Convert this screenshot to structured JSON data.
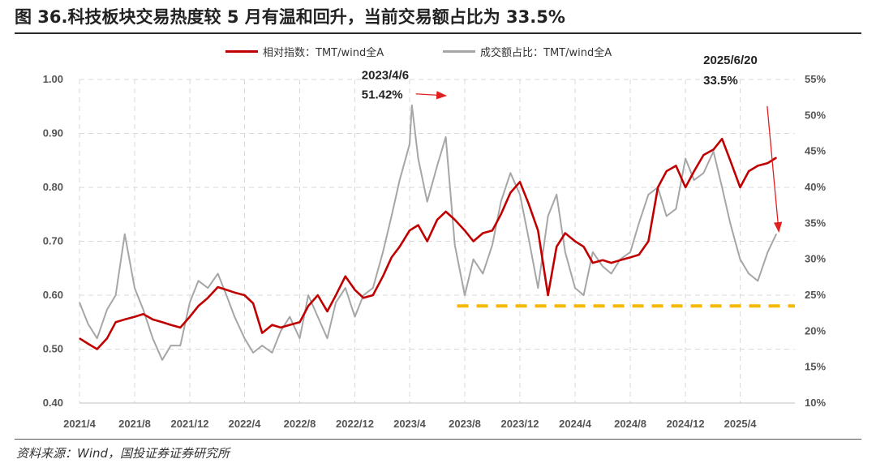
{
  "title": "图 36.科技板块交易热度较 5 月有温和回升，当前交易额占比为 33.5%",
  "source": "资料来源：Wind，国投证券证券研究所",
  "colors": {
    "series1": "#c00000",
    "series2": "#a6a6a6",
    "reference": "#f5b800",
    "arrow": "#e02020",
    "grid": "#d9d9d9"
  },
  "chart_data": {
    "type": "line",
    "x_range": [
      "2021-04-01",
      "2025-07-31"
    ],
    "x_ticks": [
      "2021/4",
      "2021/8",
      "2021/12",
      "2022/4",
      "2022/8",
      "2022/12",
      "2023/4",
      "2023/8",
      "2023/12",
      "2024/4",
      "2024/8",
      "2024/12",
      "2025/4"
    ],
    "left_axis": {
      "range": [
        0.4,
        1.0
      ],
      "ticks": [
        "0.40",
        "0.50",
        "0.60",
        "0.70",
        "0.80",
        "0.90",
        "1.00"
      ]
    },
    "right_axis": {
      "range": [
        10,
        55
      ],
      "unit": "%",
      "ticks": [
        "10%",
        "15%",
        "20%",
        "25%",
        "30%",
        "35%",
        "40%",
        "45%",
        "50%",
        "55%"
      ]
    },
    "grid": true,
    "legend_position": "top",
    "series": [
      {
        "name": "相对指数：TMT/wind全A",
        "axis": "left",
        "points": [
          [
            "2021-04-01",
            0.52
          ],
          [
            "2021-04-20",
            0.51
          ],
          [
            "2021-05-10",
            0.5
          ],
          [
            "2021-06-01",
            0.52
          ],
          [
            "2021-06-20",
            0.55
          ],
          [
            "2021-07-10",
            0.555
          ],
          [
            "2021-08-01",
            0.56
          ],
          [
            "2021-08-20",
            0.565
          ],
          [
            "2021-09-10",
            0.555
          ],
          [
            "2021-10-01",
            0.55
          ],
          [
            "2021-10-20",
            0.545
          ],
          [
            "2021-11-10",
            0.54
          ],
          [
            "2021-12-01",
            0.56
          ],
          [
            "2021-12-20",
            0.58
          ],
          [
            "2022-01-10",
            0.595
          ],
          [
            "2022-02-01",
            0.615
          ],
          [
            "2022-02-20",
            0.61
          ],
          [
            "2022-03-10",
            0.605
          ],
          [
            "2022-04-01",
            0.6
          ],
          [
            "2022-04-20",
            0.585
          ],
          [
            "2022-05-10",
            0.53
          ],
          [
            "2022-06-01",
            0.545
          ],
          [
            "2022-06-20",
            0.54
          ],
          [
            "2022-07-10",
            0.545
          ],
          [
            "2022-08-01",
            0.55
          ],
          [
            "2022-08-20",
            0.58
          ],
          [
            "2022-09-10",
            0.6
          ],
          [
            "2022-10-01",
            0.57
          ],
          [
            "2022-10-20",
            0.6
          ],
          [
            "2022-11-10",
            0.635
          ],
          [
            "2022-12-01",
            0.61
          ],
          [
            "2022-12-20",
            0.595
          ],
          [
            "2023-01-10",
            0.6
          ],
          [
            "2023-02-01",
            0.635
          ],
          [
            "2023-02-20",
            0.67
          ],
          [
            "2023-03-10",
            0.69
          ],
          [
            "2023-04-01",
            0.72
          ],
          [
            "2023-04-20",
            0.73
          ],
          [
            "2023-05-10",
            0.7
          ],
          [
            "2023-06-01",
            0.74
          ],
          [
            "2023-06-20",
            0.755
          ],
          [
            "2023-07-10",
            0.74
          ],
          [
            "2023-08-01",
            0.72
          ],
          [
            "2023-08-20",
            0.7
          ],
          [
            "2023-09-10",
            0.715
          ],
          [
            "2023-10-01",
            0.72
          ],
          [
            "2023-10-20",
            0.75
          ],
          [
            "2023-11-10",
            0.79
          ],
          [
            "2023-12-01",
            0.81
          ],
          [
            "2023-12-20",
            0.77
          ],
          [
            "2024-01-10",
            0.72
          ],
          [
            "2024-02-01",
            0.6
          ],
          [
            "2024-02-20",
            0.69
          ],
          [
            "2024-03-10",
            0.715
          ],
          [
            "2024-04-01",
            0.7
          ],
          [
            "2024-04-20",
            0.69
          ],
          [
            "2024-05-10",
            0.66
          ],
          [
            "2024-06-01",
            0.665
          ],
          [
            "2024-06-20",
            0.66
          ],
          [
            "2024-07-10",
            0.665
          ],
          [
            "2024-08-01",
            0.67
          ],
          [
            "2024-08-20",
            0.675
          ],
          [
            "2024-09-10",
            0.7
          ],
          [
            "2024-10-01",
            0.8
          ],
          [
            "2024-10-20",
            0.83
          ],
          [
            "2024-11-10",
            0.84
          ],
          [
            "2024-12-01",
            0.8
          ],
          [
            "2024-12-20",
            0.83
          ],
          [
            "2025-01-10",
            0.86
          ],
          [
            "2025-02-01",
            0.87
          ],
          [
            "2025-02-20",
            0.89
          ],
          [
            "2025-03-10",
            0.85
          ],
          [
            "2025-04-01",
            0.8
          ],
          [
            "2025-04-20",
            0.83
          ],
          [
            "2025-05-10",
            0.84
          ],
          [
            "2025-06-01",
            0.845
          ],
          [
            "2025-06-20",
            0.855
          ]
        ]
      },
      {
        "name": "成交额占比：TMT/wind全A",
        "axis": "right",
        "points": [
          [
            "2021-04-01",
            24
          ],
          [
            "2021-04-20",
            21
          ],
          [
            "2021-05-10",
            19
          ],
          [
            "2021-06-01",
            23
          ],
          [
            "2021-06-20",
            25
          ],
          [
            "2021-07-10",
            33.5
          ],
          [
            "2021-08-01",
            26
          ],
          [
            "2021-08-20",
            23
          ],
          [
            "2021-09-10",
            19
          ],
          [
            "2021-10-01",
            16
          ],
          [
            "2021-10-20",
            18
          ],
          [
            "2021-11-10",
            18
          ],
          [
            "2021-12-01",
            24
          ],
          [
            "2021-12-20",
            27
          ],
          [
            "2022-01-10",
            26
          ],
          [
            "2022-02-01",
            28
          ],
          [
            "2022-02-20",
            25
          ],
          [
            "2022-03-10",
            22
          ],
          [
            "2022-04-01",
            19
          ],
          [
            "2022-04-20",
            17
          ],
          [
            "2022-05-10",
            18
          ],
          [
            "2022-06-01",
            17
          ],
          [
            "2022-06-20",
            20
          ],
          [
            "2022-07-10",
            22
          ],
          [
            "2022-08-01",
            19
          ],
          [
            "2022-08-20",
            25
          ],
          [
            "2022-09-10",
            22
          ],
          [
            "2022-10-01",
            19
          ],
          [
            "2022-10-20",
            24
          ],
          [
            "2022-11-10",
            26
          ],
          [
            "2022-12-01",
            22
          ],
          [
            "2022-12-20",
            25
          ],
          [
            "2023-01-10",
            26
          ],
          [
            "2023-02-01",
            31
          ],
          [
            "2023-02-20",
            36
          ],
          [
            "2023-03-10",
            41
          ],
          [
            "2023-04-01",
            46
          ],
          [
            "2023-04-06",
            51.42
          ],
          [
            "2023-04-20",
            44
          ],
          [
            "2023-05-10",
            38
          ],
          [
            "2023-06-01",
            43
          ],
          [
            "2023-06-20",
            47
          ],
          [
            "2023-07-10",
            32
          ],
          [
            "2023-08-01",
            25
          ],
          [
            "2023-08-20",
            30
          ],
          [
            "2023-09-10",
            28
          ],
          [
            "2023-10-01",
            32
          ],
          [
            "2023-10-20",
            38
          ],
          [
            "2023-11-10",
            42
          ],
          [
            "2023-12-01",
            39
          ],
          [
            "2023-12-20",
            33
          ],
          [
            "2024-01-10",
            26
          ],
          [
            "2024-02-01",
            36
          ],
          [
            "2024-02-20",
            39
          ],
          [
            "2024-03-10",
            31
          ],
          [
            "2024-04-01",
            26
          ],
          [
            "2024-04-20",
            25
          ],
          [
            "2024-05-10",
            31
          ],
          [
            "2024-06-01",
            29
          ],
          [
            "2024-06-20",
            28
          ],
          [
            "2024-07-10",
            30
          ],
          [
            "2024-08-01",
            31
          ],
          [
            "2024-08-20",
            35
          ],
          [
            "2024-09-10",
            39
          ],
          [
            "2024-10-01",
            40
          ],
          [
            "2024-10-20",
            36
          ],
          [
            "2024-11-10",
            37
          ],
          [
            "2024-12-01",
            44
          ],
          [
            "2024-12-20",
            41
          ],
          [
            "2025-01-10",
            42
          ],
          [
            "2025-02-01",
            45
          ],
          [
            "2025-02-20",
            40
          ],
          [
            "2025-03-10",
            35
          ],
          [
            "2025-04-01",
            30
          ],
          [
            "2025-04-20",
            28
          ],
          [
            "2025-05-10",
            27
          ],
          [
            "2025-06-01",
            31
          ],
          [
            "2025-06-20",
            33.5
          ]
        ]
      }
    ],
    "reference_line": {
      "axis": "right",
      "value": 23.5,
      "x_start": "2023-07-15",
      "x_end": "2025-07-31"
    },
    "annotations": [
      {
        "date_label": "2023/4/6",
        "value_label": "51.42%",
        "at_date": "2023-04-06",
        "at_value": 51.42,
        "arrow_to_date": "2023-07-01",
        "arrow_to_value": 51.5
      },
      {
        "date_label": "2025/6/20",
        "value_label": "33.5%",
        "at_date": "2025-06-20",
        "at_value": 33.5,
        "arrow_from_date": "2025-05-20",
        "arrow_from_value": 52.2
      }
    ]
  }
}
